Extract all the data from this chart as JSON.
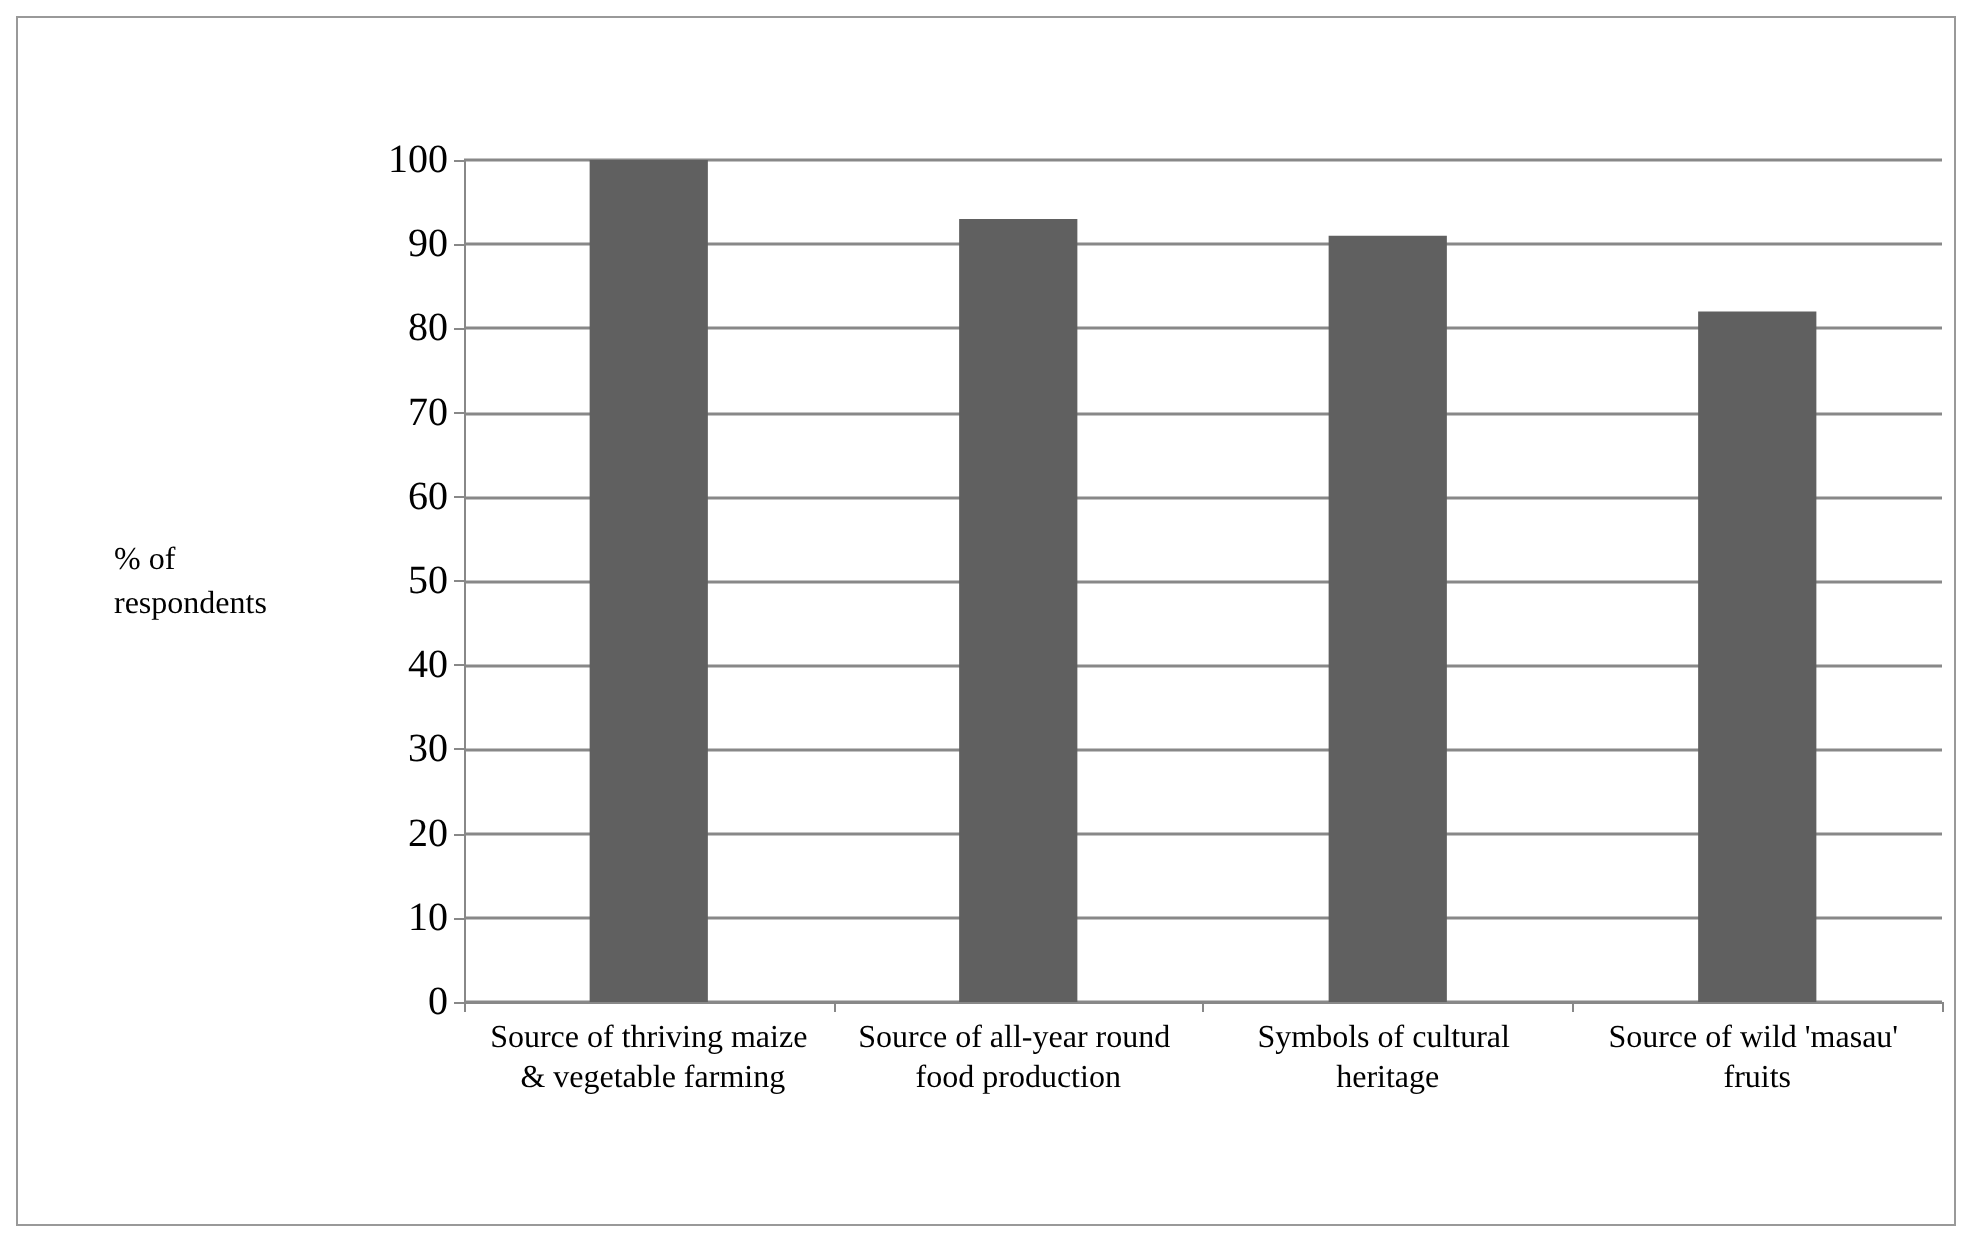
{
  "chart_data": {
    "type": "bar",
    "ylabel": "% of respondents",
    "categories": [
      "Source of thriving maize & vegetable farming",
      "Source of all-year round food production",
      "Symbols of cultural heritage",
      "Source of wild 'masau' fruits"
    ],
    "values": [
      100,
      93,
      91,
      82
    ],
    "color": "#606060",
    "ylim": [
      0,
      100
    ],
    "yticks": [
      0,
      10,
      20,
      30,
      40,
      50,
      60,
      70,
      80,
      90,
      100
    ],
    "grid": "y"
  }
}
